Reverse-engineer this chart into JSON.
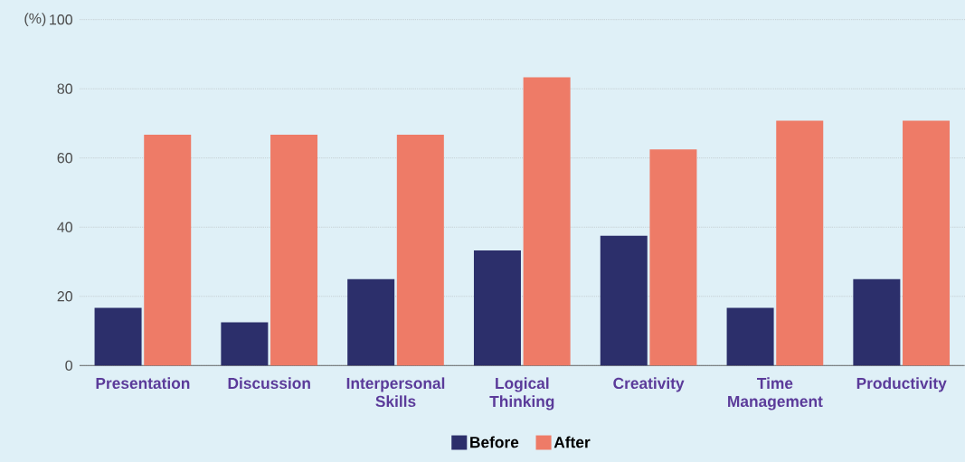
{
  "chart_data": {
    "type": "bar",
    "ylabel": "(%)",
    "categories": [
      "Presentation",
      "Discussion",
      "Interpersonal Skills",
      "Logical Thinking",
      "Creativity",
      "Time Management",
      "Productivity"
    ],
    "series": [
      {
        "name": "Before",
        "color": "#2c2f6b",
        "values": [
          16.7,
          12.5,
          25,
          33.3,
          37.5,
          16.7,
          25
        ]
      },
      {
        "name": "After",
        "color": "#ee7b67",
        "values": [
          66.7,
          66.7,
          66.7,
          83.3,
          62.5,
          70.8,
          70.8
        ]
      }
    ],
    "ylim": [
      0,
      100
    ],
    "yticks": [
      0,
      20,
      40,
      60,
      80,
      100
    ],
    "grid": "y",
    "legend": "bottom"
  }
}
